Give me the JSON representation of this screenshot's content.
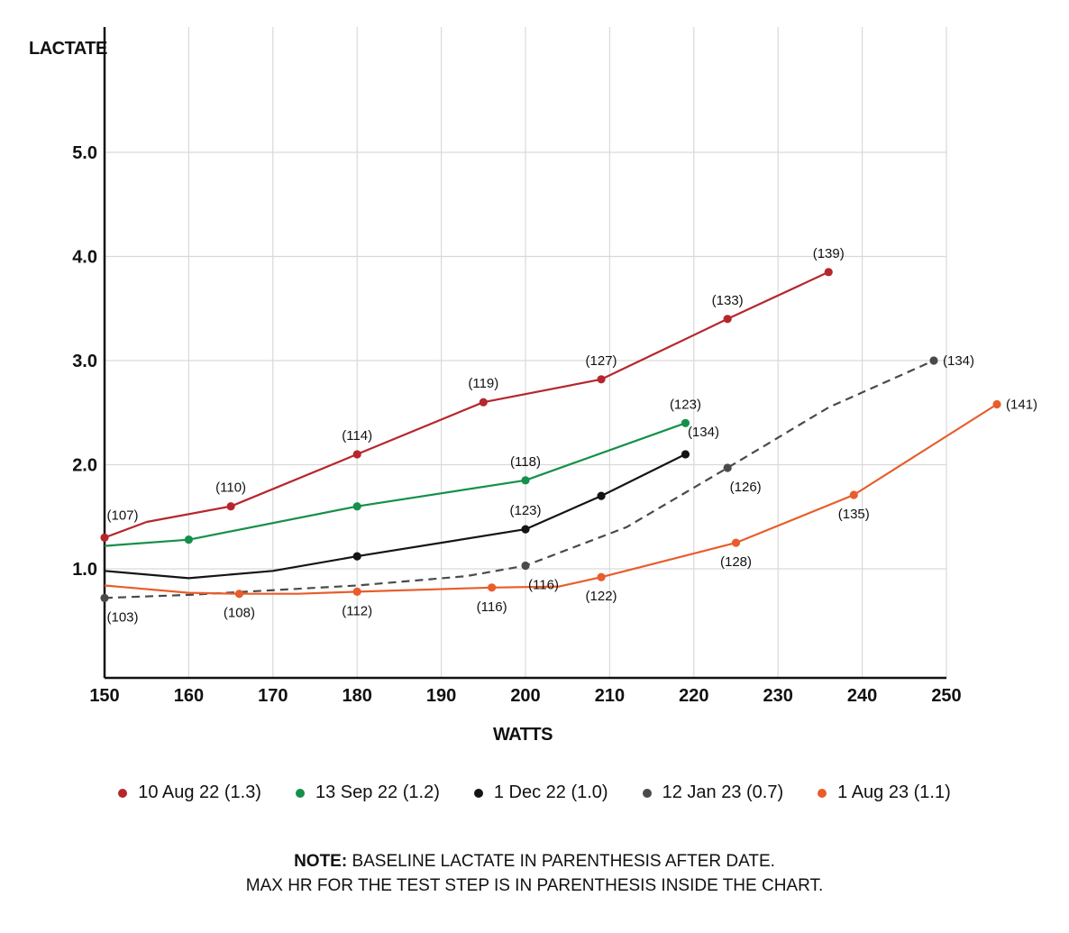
{
  "chart_data": {
    "type": "line",
    "xlabel": "WATTS",
    "ylabel": "LACTATE",
    "xlim": [
      150,
      250
    ],
    "ylim": [
      0,
      6.0
    ],
    "x_ticks": [
      "150",
      "160",
      "170",
      "180",
      "190",
      "200",
      "210",
      "220",
      "230",
      "240",
      "250"
    ],
    "y_ticks": [
      {
        "value": 1.0,
        "label": "1.0"
      },
      {
        "value": 2.0,
        "label": "2.0"
      },
      {
        "value": 3.0,
        "label": "3.0"
      },
      {
        "value": 4.0,
        "label": "4.0"
      },
      {
        "value": 5.0,
        "label": "5.0"
      }
    ],
    "grid": true,
    "legend_position": "bottom",
    "series": [
      {
        "name": "10 Aug 22 (1.3)",
        "color": "#b5272d",
        "dashed": false,
        "line": [
          [
            150,
            1.3
          ],
          [
            155,
            1.45
          ],
          [
            165,
            1.6
          ],
          [
            180,
            2.1
          ],
          [
            195,
            2.6
          ],
          [
            209,
            2.82
          ],
          [
            224,
            3.4
          ],
          [
            236,
            3.85
          ]
        ],
        "points": [
          {
            "x": 150,
            "y": 1.3,
            "hr": "(107)",
            "label_side": "above-right"
          },
          {
            "x": 165,
            "y": 1.6,
            "hr": "(110)",
            "label_side": "above"
          },
          {
            "x": 180,
            "y": 2.1,
            "hr": "(114)",
            "label_side": "above"
          },
          {
            "x": 195,
            "y": 2.6,
            "hr": "(119)",
            "label_side": "above"
          },
          {
            "x": 209,
            "y": 2.82,
            "hr": "(127)",
            "label_side": "above"
          },
          {
            "x": 224,
            "y": 3.4,
            "hr": "(133)",
            "label_side": "above"
          },
          {
            "x": 236,
            "y": 3.85,
            "hr": "(139)",
            "label_side": "above"
          }
        ]
      },
      {
        "name": "13 Sep 22 (1.2)",
        "color": "#14904a",
        "dashed": false,
        "line": [
          [
            150,
            1.22
          ],
          [
            160,
            1.28
          ],
          [
            180,
            1.6
          ],
          [
            200,
            1.85
          ],
          [
            219,
            2.4
          ]
        ],
        "points": [
          {
            "x": 160,
            "y": 1.28,
            "hr": "",
            "label_side": "none"
          },
          {
            "x": 180,
            "y": 1.6,
            "hr": "",
            "label_side": "none"
          },
          {
            "x": 200,
            "y": 1.85,
            "hr": "(118)",
            "label_side": "above"
          },
          {
            "x": 219,
            "y": 2.4,
            "hr": "(123)",
            "label_side": "above"
          }
        ]
      },
      {
        "name": "1 Dec 22 (1.0)",
        "color": "#141414",
        "dashed": false,
        "line": [
          [
            150,
            0.98
          ],
          [
            160,
            0.91
          ],
          [
            170,
            0.98
          ],
          [
            180,
            1.12
          ],
          [
            200,
            1.38
          ],
          [
            209,
            1.7
          ],
          [
            219,
            2.1
          ]
        ],
        "points": [
          {
            "x": 180,
            "y": 1.12,
            "hr": "",
            "label_side": "none"
          },
          {
            "x": 200,
            "y": 1.38,
            "hr": "(123)",
            "label_side": "above"
          },
          {
            "x": 209,
            "y": 1.7,
            "hr": "",
            "label_side": "none"
          },
          {
            "x": 219,
            "y": 2.1,
            "hr": "(134)",
            "label_side": "above-right"
          }
        ]
      },
      {
        "name": "12 Jan 23 (0.7)",
        "color": "#4a4a4a",
        "dashed": true,
        "line": [
          [
            150,
            0.72
          ],
          [
            160,
            0.75
          ],
          [
            180,
            0.84
          ],
          [
            193,
            0.93
          ],
          [
            200,
            1.03
          ],
          [
            212,
            1.4
          ],
          [
            224,
            1.97
          ],
          [
            236,
            2.55
          ],
          [
            248.5,
            3.0
          ]
        ],
        "points": [
          {
            "x": 150,
            "y": 0.72,
            "hr": "(103)",
            "label_side": "below-right"
          },
          {
            "x": 200,
            "y": 1.03,
            "hr": "(116)",
            "label_side": "below-right"
          },
          {
            "x": 224,
            "y": 1.97,
            "hr": "(126)",
            "label_side": "below-right"
          },
          {
            "x": 248.5,
            "y": 3.0,
            "hr": "(134)",
            "label_side": "right"
          }
        ]
      },
      {
        "name": "1 Aug 23 (1.1)",
        "color": "#e85d2a",
        "dashed": false,
        "line": [
          [
            150,
            0.84
          ],
          [
            160,
            0.77
          ],
          [
            166,
            0.76
          ],
          [
            173,
            0.76
          ],
          [
            180,
            0.78
          ],
          [
            196,
            0.82
          ],
          [
            204,
            0.83
          ],
          [
            209,
            0.92
          ],
          [
            225,
            1.25
          ],
          [
            239,
            1.71
          ],
          [
            256,
            2.58
          ]
        ],
        "points": [
          {
            "x": 166,
            "y": 0.76,
            "hr": "(108)",
            "label_side": "below"
          },
          {
            "x": 180,
            "y": 0.78,
            "hr": "(112)",
            "label_side": "below"
          },
          {
            "x": 196,
            "y": 0.82,
            "hr": "(116)",
            "label_side": "below"
          },
          {
            "x": 209,
            "y": 0.92,
            "hr": "(122)",
            "label_side": "below"
          },
          {
            "x": 225,
            "y": 1.25,
            "hr": "(128)",
            "label_side": "below"
          },
          {
            "x": 239,
            "y": 1.71,
            "hr": "(135)",
            "label_side": "below"
          },
          {
            "x": 256,
            "y": 2.58,
            "hr": "(141)",
            "label_side": "right"
          }
        ]
      }
    ]
  },
  "note": {
    "prefix": "NOTE:",
    "line1": " BASELINE LACTATE IN PARENTHESIS AFTER DATE.",
    "line2": "MAX HR FOR THE TEST STEP IS IN PARENTHESIS INSIDE THE CHART."
  }
}
